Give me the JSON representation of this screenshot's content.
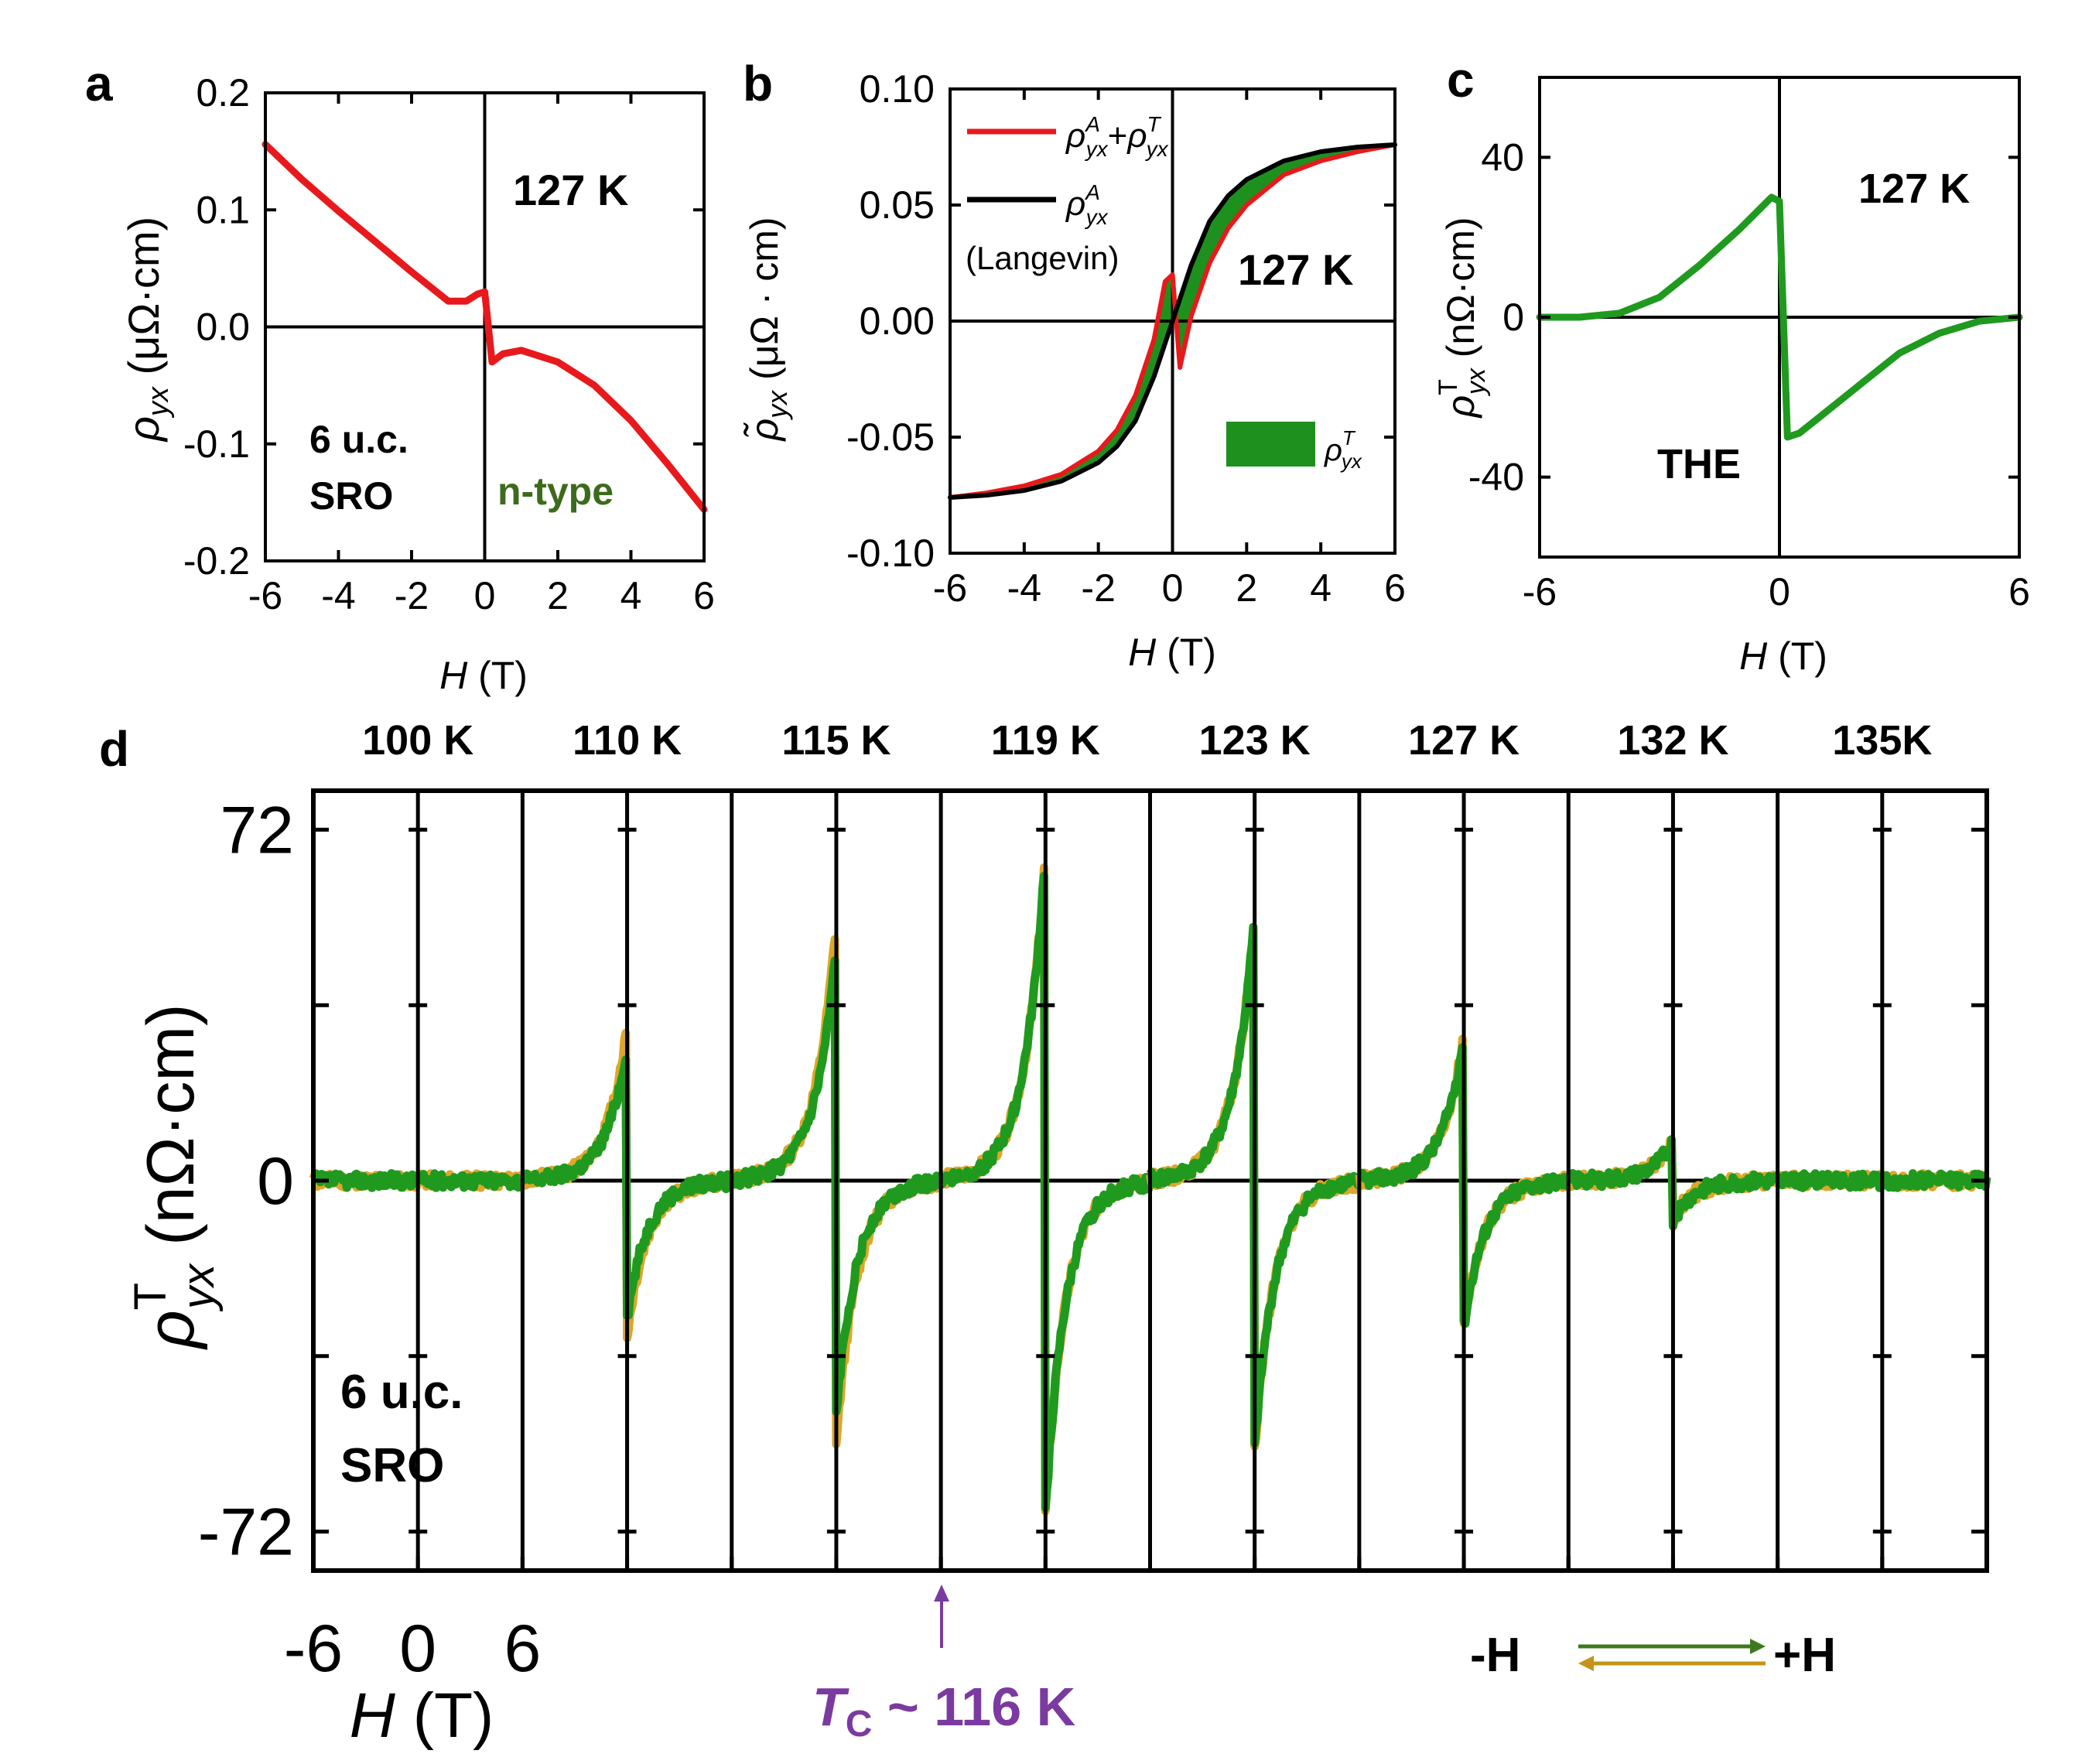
{
  "figure": {
    "panels": [
      "a",
      "b",
      "c",
      "d"
    ]
  },
  "colors": {
    "red": "#e8191c",
    "black": "#000000",
    "green": "#1f9a1f",
    "orange": "#dca72a",
    "olive": "#3d6b1c",
    "purple": "#7b3aa0",
    "shade": "#1e901e"
  },
  "chart_data": [
    {
      "id": "a",
      "type": "line",
      "panel_label": "a",
      "xlabel_italic": "H",
      "xlabel_unit": " (T)",
      "ylabel_sym": "ρ",
      "ylabel_sub": "yx",
      "ylabel_unit": " (μΩ·cm)",
      "xlim": [
        -6,
        6
      ],
      "ylim": [
        -0.2,
        0.2
      ],
      "xticks": [
        "-6",
        "-4",
        "-2",
        "0",
        "2",
        "4",
        "6"
      ],
      "yticks": [
        "-0.2",
        "-0.1",
        "0.0",
        "0.1",
        "0.2"
      ],
      "annotations": [
        "127 K",
        "6 u.c.",
        "SRO",
        "n-type"
      ],
      "series": [
        {
          "name": "ρyx",
          "color": "#e8191c",
          "x": [
            -6,
            -5,
            -4,
            -3,
            -2,
            -1,
            -0.5,
            -0.2,
            0,
            0.2,
            0.5,
            1,
            2,
            3,
            4,
            5,
            6
          ],
          "y": [
            0.156,
            0.126,
            0.099,
            0.073,
            0.047,
            0.022,
            0.022,
            0.028,
            0.03,
            -0.03,
            -0.023,
            -0.02,
            -0.03,
            -0.05,
            -0.08,
            -0.117,
            -0.156
          ]
        }
      ]
    },
    {
      "id": "b",
      "type": "line",
      "panel_label": "b",
      "xlabel_italic": "H",
      "xlabel_unit": " (T)",
      "ylabel_sym": "ρ̃",
      "ylabel_sub": "yx",
      "ylabel_unit": " (μΩ · cm)",
      "xlim": [
        -6,
        6
      ],
      "ylim": [
        -0.1,
        0.1
      ],
      "xticks": [
        "-6",
        "-4",
        "-2",
        "0",
        "2",
        "4",
        "6"
      ],
      "yticks": [
        "-0.10",
        "-0.05",
        "0.00",
        "0.05",
        "0.10"
      ],
      "legend": [
        "ρAyx+ρTyx",
        "ρAyx",
        "(Langevin)"
      ],
      "shade_legend": "ρTyx",
      "annotations": [
        "127 K"
      ],
      "series": [
        {
          "name": "ρAyx+ρTyx",
          "color": "#e8191c",
          "x": [
            -6,
            -5,
            -4,
            -3,
            -2,
            -1.5,
            -1,
            -0.5,
            -0.2,
            0,
            0.2,
            0.5,
            1,
            1.5,
            2,
            3,
            4,
            5,
            6
          ],
          "y": [
            -0.076,
            -0.074,
            -0.071,
            -0.066,
            -0.056,
            -0.047,
            -0.032,
            -0.008,
            0.017,
            0.02,
            -0.02,
            0.002,
            0.025,
            0.04,
            0.05,
            0.063,
            0.069,
            0.073,
            0.076
          ]
        },
        {
          "name": "ρAyx (Langevin)",
          "color": "#000000",
          "x": [
            -6,
            -5,
            -4,
            -3,
            -2,
            -1.5,
            -1,
            -0.5,
            0,
            0.5,
            1,
            1.5,
            2,
            3,
            4,
            5,
            6
          ],
          "y": [
            -0.076,
            -0.075,
            -0.073,
            -0.069,
            -0.061,
            -0.054,
            -0.043,
            -0.024,
            0,
            0.024,
            0.043,
            0.054,
            0.061,
            0.069,
            0.073,
            0.075,
            0.076
          ]
        }
      ]
    },
    {
      "id": "c",
      "type": "line",
      "panel_label": "c",
      "xlabel_italic": "H",
      "xlabel_unit": " (T)",
      "ylabel_sym": "ρ",
      "ylabel_sup": "T",
      "ylabel_sub": "yx",
      "ylabel_unit": " (nΩ·cm)",
      "xlim": [
        -6,
        6
      ],
      "ylim": [
        -60,
        60
      ],
      "xticks": [
        "-6",
        "0",
        "6"
      ],
      "yticks": [
        "-40",
        "0",
        "40"
      ],
      "annotations": [
        "127 K",
        "THE"
      ],
      "series": [
        {
          "name": "ρTyx",
          "color": "#1f9a1f",
          "x": [
            -6,
            -5,
            -4,
            -3,
            -2,
            -1,
            -0.5,
            -0.2,
            0,
            0.2,
            0.5,
            1,
            2,
            3,
            4,
            5,
            6
          ],
          "y": [
            0,
            0,
            1,
            5,
            13,
            22,
            27,
            30,
            29,
            -30,
            -29,
            -25,
            -17,
            -9,
            -4,
            -1,
            0
          ]
        }
      ]
    },
    {
      "id": "d",
      "type": "line",
      "panel_label": "d",
      "xlabel_italic": "H",
      "xlabel_unit": " (T)",
      "ylabel_sym": "ρ",
      "ylabel_sup": "T",
      "ylabel_sub": "yx",
      "ylabel_unit": " (nΩ·cm)",
      "ylim": [
        -80,
        80
      ],
      "yticks": [
        "-72",
        "0",
        "72"
      ],
      "xticks_first": [
        "-6",
        "0",
        "6"
      ],
      "xlim_each": [
        -6,
        6
      ],
      "temperatures": [
        "100 K",
        "110 K",
        "115 K",
        "119 K",
        "123 K",
        "127 K",
        "132 K",
        "135K"
      ],
      "amplitudes": [
        0,
        28,
        48,
        68,
        55,
        30,
        8,
        0
      ],
      "amplitudes_orange": [
        0,
        32,
        54,
        68,
        55,
        30,
        8,
        0
      ],
      "tc_label_T": "T",
      "tc_label_sub": "C",
      "tc_label_rest": " ~ 116 K",
      "annotations": [
        "6 u.c.",
        "SRO"
      ],
      "sweep_legend": [
        "-H",
        "+H"
      ]
    }
  ]
}
